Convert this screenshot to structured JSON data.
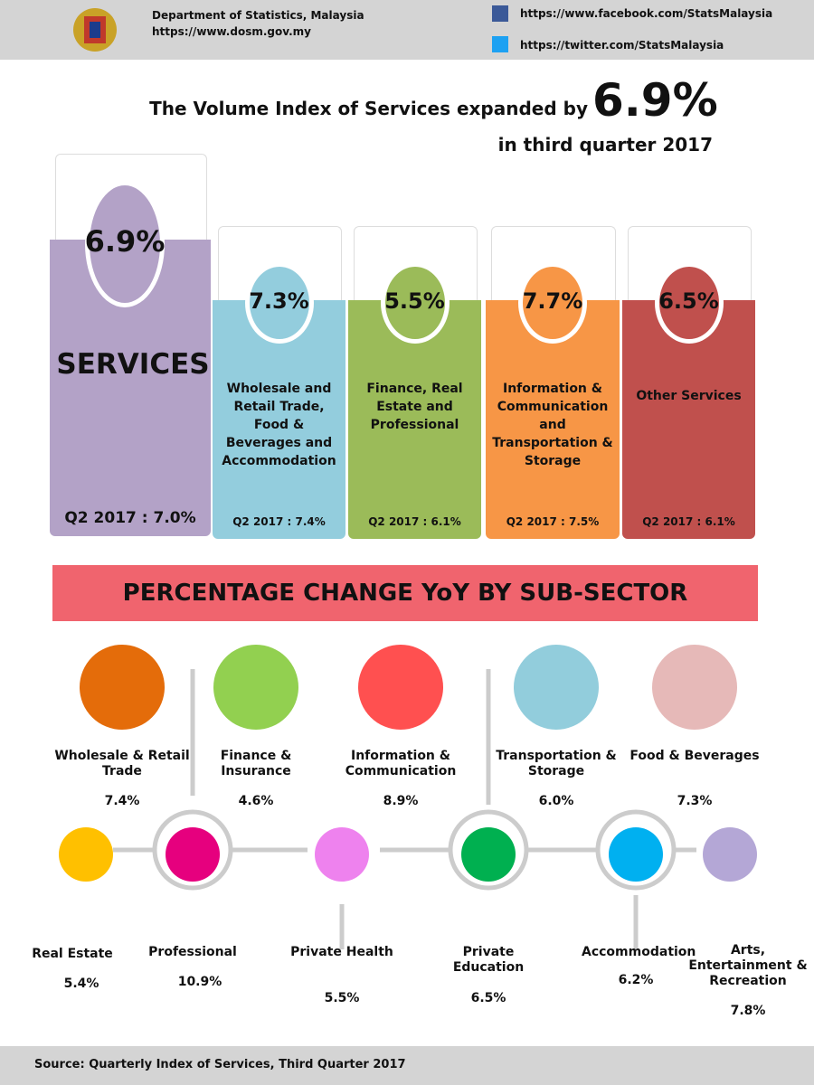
{
  "header": {
    "organization": "Department of Statistics, Malaysia",
    "website": "https://www.dosm.gov.my",
    "facebook": "https://www.facebook.com/StatsMalaysia",
    "twitter": "https://twitter.com/StatsMalaysia"
  },
  "headline": {
    "text": "The Volume Index of Services expanded by",
    "value": "6.9%",
    "period": "in third quarter 2017"
  },
  "sectors": [
    {
      "value": "6.9%",
      "label": "SERVICES",
      "previous": "Q2 2017 : 7.0%"
    },
    {
      "value": "7.3%",
      "label": "Wholesale and Retail Trade, Food & Beverages and Accommodation",
      "previous": "Q2 2017 : 7.4%"
    },
    {
      "value": "5.5%",
      "label": "Finance, Real Estate and Professional",
      "previous": "Q2 2017 : 6.1%"
    },
    {
      "value": "7.7%",
      "label": "Information & Communication and Transportation & Storage",
      "previous": "Q2 2017 : 7.5%"
    },
    {
      "value": "6.5%",
      "label": "Other Services",
      "previous": "Q2 2017 : 6.1%"
    }
  ],
  "banner": "PERCENTAGE CHANGE YoY BY SUB-SECTOR",
  "subsectors_top": [
    {
      "label": "Wholesale & Retail Trade",
      "value": "7.4%"
    },
    {
      "label": "Finance & Insurance",
      "value": "4.6%"
    },
    {
      "label": "Information & Communication",
      "value": "8.9%"
    },
    {
      "label": "Transportation & Storage",
      "value": "6.0%"
    },
    {
      "label": "Food & Beverages",
      "value": "7.3%"
    }
  ],
  "subsectors_bottom": [
    {
      "label": "Real Estate",
      "value": "5.4%"
    },
    {
      "label": "Professional",
      "value": "10.9%"
    },
    {
      "label": "Private Health",
      "value": "5.5%"
    },
    {
      "label": "Private Education",
      "value": "6.5%"
    },
    {
      "label": "Accommodation",
      "value": "6.2%"
    },
    {
      "label": "Arts, Entertainment & Recreation",
      "value": "7.8%"
    }
  ],
  "source": "Source: Quarterly Index of Services, Third Quarter 2017"
}
